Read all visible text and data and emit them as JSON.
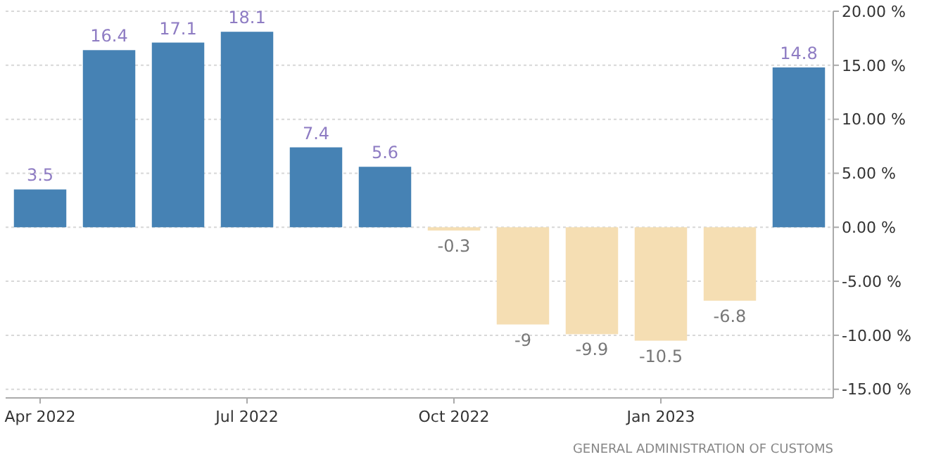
{
  "chart_data": {
    "type": "bar",
    "categories": [
      "Apr 2022",
      null,
      null,
      "Jul 2022",
      null,
      null,
      "Oct 2022",
      null,
      null,
      "Jan 2023",
      null,
      null
    ],
    "values": [
      3.5,
      16.4,
      17.1,
      18.1,
      7.4,
      5.6,
      -0.3,
      -9,
      -9.9,
      -10.5,
      -6.8,
      14.8
    ],
    "colors": [
      "#4682b4",
      "#4682b4",
      "#4682b4",
      "#4682b4",
      "#4682b4",
      "#4682b4",
      "#f5deb3",
      "#f5deb3",
      "#f5deb3",
      "#f5deb3",
      "#f5deb3",
      "#4682b4"
    ],
    "ylim": [
      -15.8,
      20
    ],
    "yticks": [
      {
        "value": 20,
        "label": "20.00 %"
      },
      {
        "value": 15,
        "label": "15.00 %"
      },
      {
        "value": 10,
        "label": "10.00 %"
      },
      {
        "value": 5,
        "label": "5.00 %"
      },
      {
        "value": 0,
        "label": "0.00 %"
      },
      {
        "value": -5,
        "label": "-5.00 %"
      },
      {
        "value": -10,
        "label": "-10.00 %"
      },
      {
        "value": -15,
        "label": "-15.00 %"
      }
    ],
    "grid": "y",
    "data_labels": true,
    "annotations": [
      "GENERAL ADMINISTRATION OF CUSTOMS"
    ]
  }
}
